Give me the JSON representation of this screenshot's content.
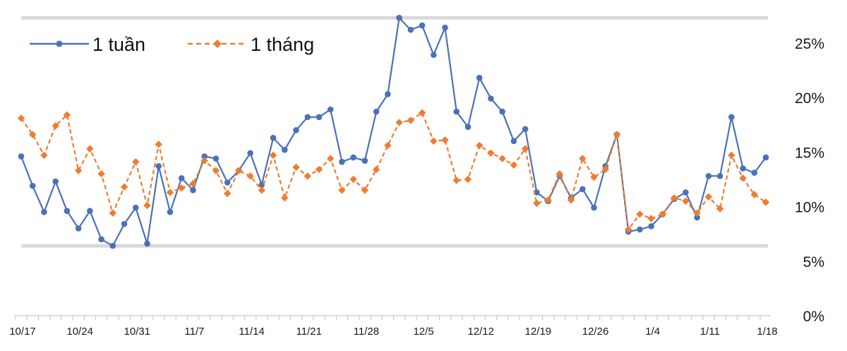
{
  "chart_data": {
    "type": "line",
    "title": "",
    "xlabel": "",
    "ylabel": "",
    "ylim": [
      0,
      27.5
    ],
    "y_axis_side": "right",
    "y_ticks": [
      0,
      5,
      10,
      15,
      20,
      25
    ],
    "y_tick_labels": [
      "0%",
      "5%",
      "10%",
      "15%",
      "20%",
      "25%"
    ],
    "x_tick_labels": [
      "10/17",
      "10/24",
      "10/31",
      "11/7",
      "11/14",
      "11/21",
      "11/28",
      "12/5",
      "12/12",
      "12/19",
      "12/26",
      "1/4",
      "1/11",
      "1/18"
    ],
    "x_tick_positions": [
      0,
      5,
      10,
      15,
      20,
      25,
      30,
      35,
      40,
      45,
      50,
      55,
      60,
      65
    ],
    "reference_lines": [
      6.4,
      27.3
    ],
    "legend_position": "top-left",
    "series": [
      {
        "name": "1 tuần",
        "color": "#4a72b8",
        "marker": "circle",
        "line_style": "solid",
        "values": [
          14.6,
          11.9,
          9.5,
          12.3,
          9.6,
          8.0,
          9.6,
          7.0,
          6.4,
          8.4,
          9.9,
          6.6,
          13.7,
          9.5,
          12.6,
          11.5,
          14.6,
          14.4,
          12.2,
          13.3,
          14.9,
          12.0,
          16.3,
          15.2,
          17.0,
          18.2,
          18.2,
          18.9,
          14.1,
          14.5,
          14.2,
          18.7,
          20.3,
          27.3,
          26.2,
          26.6,
          23.9,
          26.4,
          18.7,
          17.3,
          21.8,
          19.9,
          18.7,
          16.0,
          17.1,
          11.3,
          10.5,
          12.8,
          10.8,
          11.6,
          9.9,
          13.7,
          16.6,
          7.7,
          7.9,
          8.2,
          9.3,
          10.7,
          11.3,
          9.0,
          12.8,
          12.8,
          18.2,
          13.5,
          13.1,
          14.5
        ]
      },
      {
        "name": "1 tháng",
        "color": "#ed7d31",
        "marker": "diamond",
        "line_style": "dashed",
        "values": [
          18.1,
          16.6,
          14.7,
          17.4,
          18.4,
          13.3,
          15.3,
          13.0,
          9.4,
          11.8,
          14.1,
          10.1,
          15.7,
          11.3,
          11.7,
          12.1,
          14.2,
          13.3,
          11.2,
          13.3,
          12.8,
          11.5,
          14.7,
          10.8,
          13.6,
          12.8,
          13.4,
          14.4,
          11.5,
          12.5,
          11.5,
          13.4,
          15.6,
          17.7,
          17.9,
          18.6,
          16.0,
          16.1,
          12.4,
          12.5,
          15.6,
          14.9,
          14.4,
          13.8,
          15.3,
          10.3,
          10.6,
          13.0,
          10.6,
          14.4,
          12.7,
          13.4,
          16.6,
          7.9,
          9.3,
          8.9,
          9.3,
          10.8,
          10.5,
          9.4,
          10.9,
          9.8,
          14.7,
          12.6,
          11.1,
          10.4
        ]
      }
    ]
  }
}
